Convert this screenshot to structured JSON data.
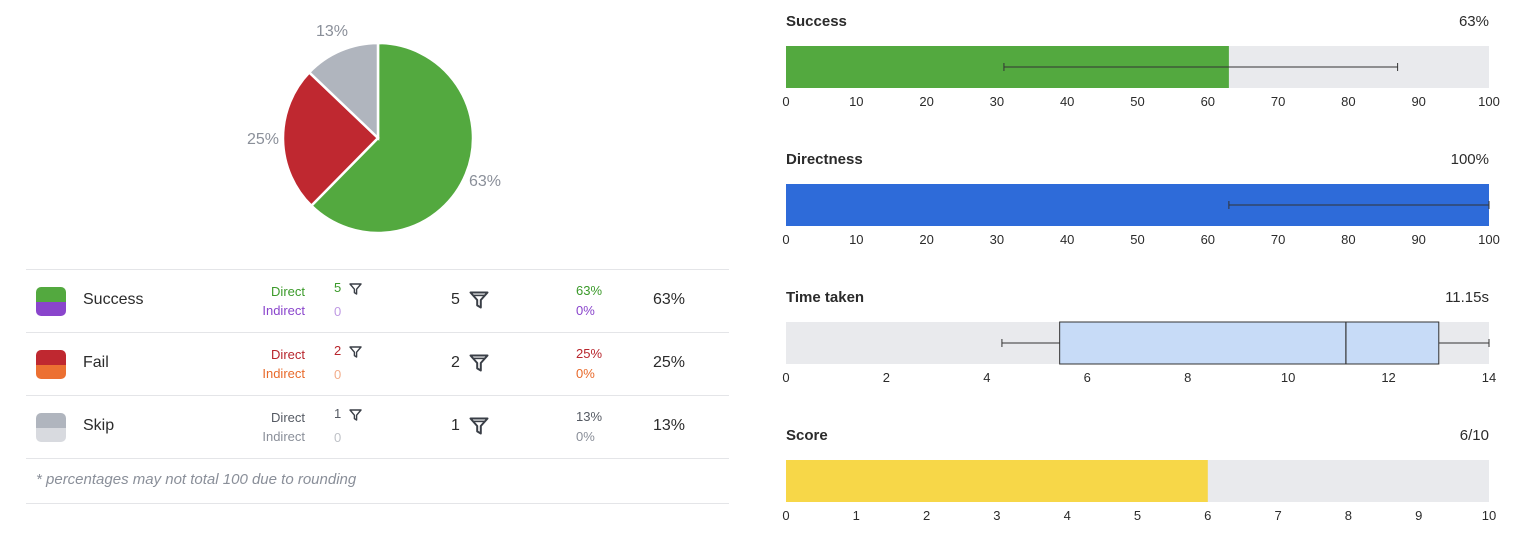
{
  "chart_data": [
    {
      "type": "pie",
      "slices": [
        {
          "label": "63%",
          "value": 63,
          "color": "#53a93f"
        },
        {
          "label": "25%",
          "value": 25,
          "color": "#bf2830"
        },
        {
          "label": "13%",
          "value": 13,
          "color": "#b0b5be"
        }
      ]
    },
    {
      "type": "bar",
      "title": "Success",
      "value_label": "63%",
      "value": 63,
      "xlim": [
        0,
        100
      ],
      "ticks": [
        0,
        10,
        20,
        30,
        40,
        50,
        60,
        70,
        80,
        90,
        100
      ],
      "error": [
        31,
        87
      ],
      "color": "#53a93f"
    },
    {
      "type": "bar",
      "title": "Directness",
      "value_label": "100%",
      "value": 100,
      "xlim": [
        0,
        100
      ],
      "ticks": [
        0,
        10,
        20,
        30,
        40,
        50,
        60,
        70,
        80,
        90,
        100
      ],
      "error": [
        63,
        100
      ],
      "color": "#2e6bd9"
    },
    {
      "type": "boxplot",
      "title": "Time taken",
      "value_label": "11.15s",
      "xlim": [
        0,
        14
      ],
      "ticks": [
        0,
        2,
        4,
        6,
        8,
        10,
        12,
        14
      ],
      "whisker_low": 4.3,
      "q1": 5.45,
      "median": 11.15,
      "q3": 13.0,
      "whisker_high": 14,
      "color": "#c7dbf7"
    },
    {
      "type": "bar",
      "title": "Score",
      "value_label": "6/10",
      "value": 6,
      "xlim": [
        0,
        10
      ],
      "ticks": [
        0,
        1,
        2,
        3,
        4,
        5,
        6,
        7,
        8,
        9,
        10
      ],
      "color": "#f7d748"
    }
  ],
  "results": {
    "direct_label": "Direct",
    "indirect_label": "Indirect",
    "rows": [
      {
        "name": "Success",
        "direct_count": "5",
        "indirect_count": "0",
        "total": "5",
        "direct_pct": "63%",
        "indirect_pct": "0%",
        "total_pct": "63%",
        "direct_color": "#3b9a2a",
        "indirect_color": "#8a45cc",
        "swatch_top": "#53a93f",
        "swatch_bottom": "#8a45cc"
      },
      {
        "name": "Fail",
        "direct_count": "2",
        "indirect_count": "0",
        "total": "2",
        "direct_pct": "25%",
        "indirect_pct": "0%",
        "total_pct": "25%",
        "direct_color": "#b8262d",
        "indirect_color": "#e86a2b",
        "swatch_top": "#bf2830",
        "swatch_bottom": "#ec7032"
      },
      {
        "name": "Skip",
        "direct_count": "1",
        "indirect_count": "0",
        "total": "1",
        "direct_pct": "13%",
        "indirect_pct": "0%",
        "total_pct": "13%",
        "direct_color": "#555a63",
        "indirect_color": "#8a8f99",
        "swatch_top": "#b0b5be",
        "swatch_bottom": "#d8dadf"
      }
    ],
    "footnote": "* percentages may not total 100 due to rounding"
  }
}
